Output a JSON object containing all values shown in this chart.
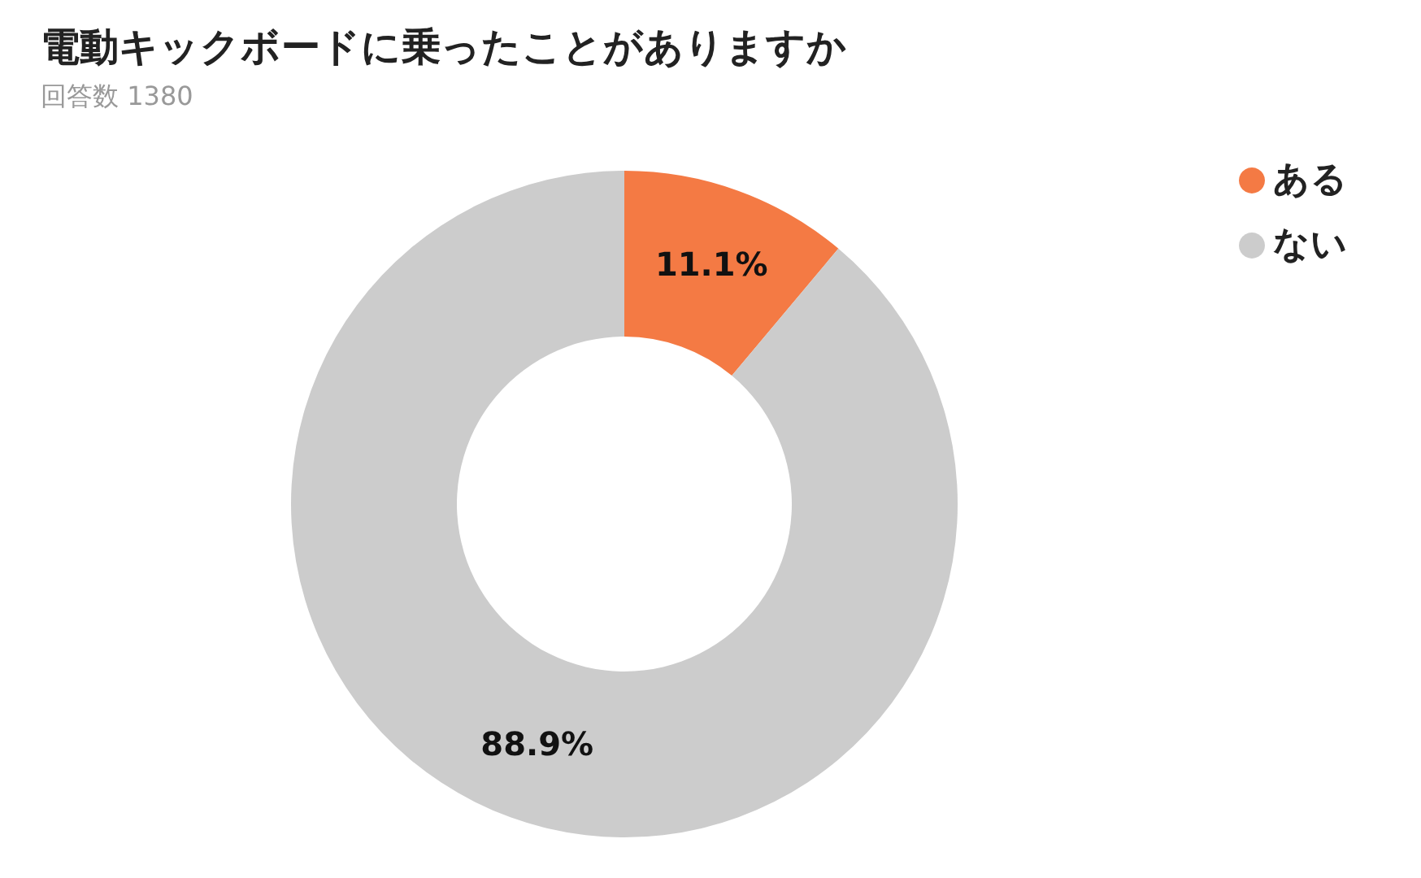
{
  "chart_data": {
    "type": "donut",
    "title": "電動キックボードに乗ったことがありますか",
    "subtitle": "回答数 1380",
    "categories": [
      "ある",
      "ない"
    ],
    "values": [
      11.1,
      88.9
    ],
    "colors": [
      "#f47a44",
      "#cccccc"
    ],
    "value_labels": [
      "11.1%",
      "88.9%"
    ],
    "legend": "top right"
  }
}
